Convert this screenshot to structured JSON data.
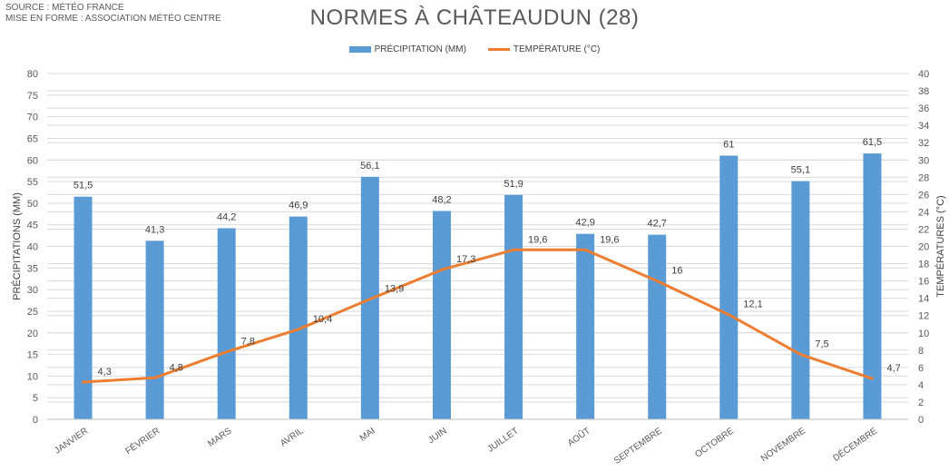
{
  "header": {
    "source_line1": "SOURCE : MÉTÉO FRANCE",
    "source_line2": "MISE EN FORME : ASSOCIATION MÉTÉO CENTRE",
    "title": "NORMES À CHÂTEAUDUN (28)"
  },
  "colors": {
    "bars": "#5B9BD5",
    "line": "#ED7D31",
    "grid": "#D9D9D9"
  },
  "chart_data": {
    "type": "bar+line",
    "title": "NORMES À CHÂTEAUDUN (28)",
    "categories": [
      "JANVIER",
      "FÉVRIER",
      "MARS",
      "AVRIL",
      "MAI",
      "JUIN",
      "JUILLET",
      "AOÛT",
      "SEPTEMBRE",
      "OCTOBRE",
      "NOVEMBRE",
      "DÉCEMBRE"
    ],
    "series": [
      {
        "name": "PRÉCIPITATION (MM)",
        "type": "bar",
        "axis": "left",
        "values": [
          51.5,
          41.3,
          44.2,
          46.9,
          56.1,
          48.2,
          51.9,
          42.9,
          42.7,
          61,
          55.1,
          61.5
        ],
        "labels": [
          "51,5",
          "41,3",
          "44,2",
          "46,9",
          "56,1",
          "48,2",
          "51,9",
          "42,9",
          "42,7",
          "61",
          "55,1",
          "61,5"
        ]
      },
      {
        "name": "TEMPÉRATURE (°C)",
        "type": "line",
        "axis": "right",
        "values": [
          4.3,
          4.8,
          7.8,
          10.4,
          13.9,
          17.3,
          19.6,
          19.6,
          16,
          12.1,
          7.5,
          4.7
        ],
        "labels": [
          "4,3",
          "4,8",
          "7,8",
          "10,4",
          "13,9",
          "17,3",
          "19,6",
          "19,6",
          "16",
          "12,1",
          "7,5",
          "4,7"
        ]
      }
    ],
    "ylabel_left": "PRÉCIPITATIONS (MM)",
    "ylabel_right": "TEMPÉRATURES (°C)",
    "ylim_left": [
      0,
      80
    ],
    "ylim_right": [
      0,
      40
    ],
    "yticks_left": [
      0,
      5,
      10,
      15,
      20,
      25,
      30,
      35,
      40,
      45,
      50,
      55,
      60,
      65,
      70,
      75,
      80
    ],
    "yticks_right": [
      0,
      2,
      4,
      6,
      8,
      10,
      12,
      14,
      16,
      18,
      20,
      22,
      24,
      26,
      28,
      30,
      32,
      34,
      36,
      38,
      40
    ],
    "grid": true,
    "legend_position": "top"
  }
}
